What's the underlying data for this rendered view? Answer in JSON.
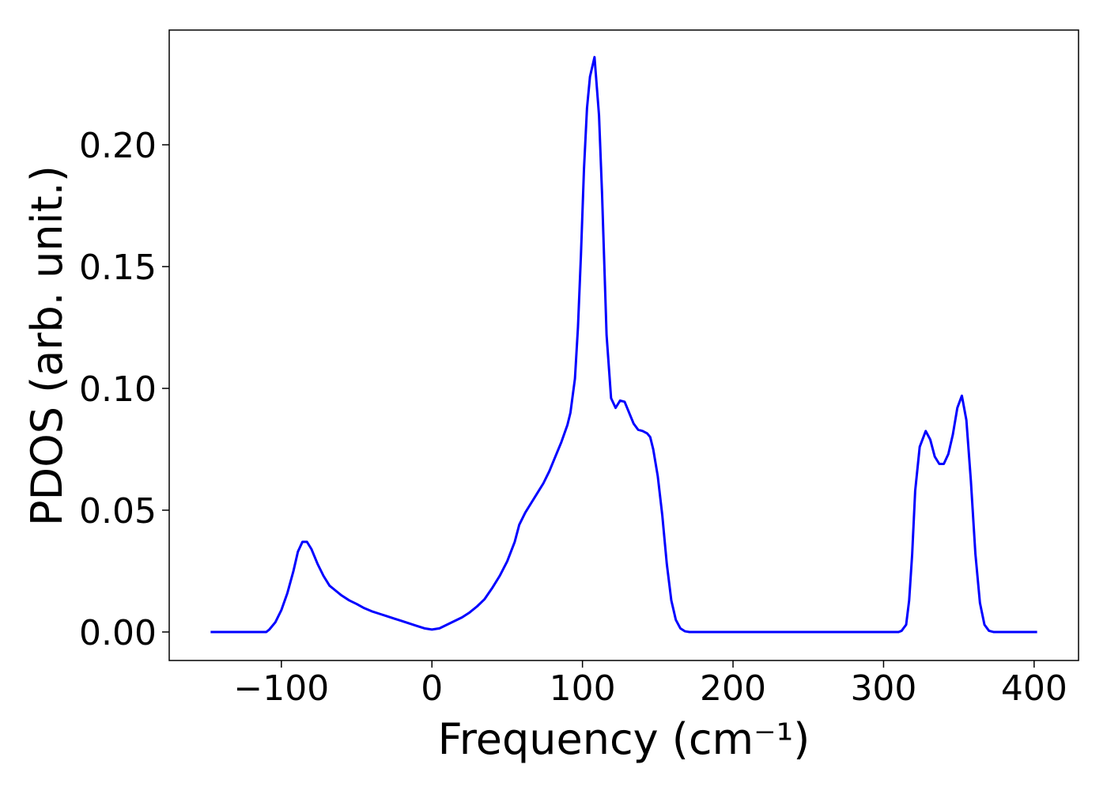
{
  "chart_data": {
    "type": "line",
    "xlabel": "Frequency (cm⁻¹)",
    "ylabel": "PDOS (arb. unit.)",
    "x": [
      -147,
      -130,
      -115,
      -110,
      -108,
      -104,
      -100,
      -96,
      -92,
      -89,
      -86,
      -83,
      -80,
      -76,
      -72,
      -68,
      -64,
      -60,
      -55,
      -50,
      -45,
      -40,
      -35,
      -30,
      -25,
      -20,
      -15,
      -10,
      -5,
      0,
      5,
      10,
      15,
      20,
      25,
      30,
      35,
      40,
      45,
      50,
      55,
      58,
      62,
      66,
      70,
      74,
      78,
      82,
      86,
      90,
      92,
      95,
      97,
      99,
      101,
      103,
      105,
      108,
      111,
      113,
      116,
      119,
      122,
      125,
      128,
      131,
      134,
      137,
      140,
      143,
      145,
      147,
      150,
      153,
      156,
      159,
      162,
      165,
      168,
      171,
      200,
      250,
      300,
      310,
      312,
      315,
      317,
      319,
      321,
      324,
      328,
      331,
      334,
      337,
      340,
      343,
      346,
      349,
      352,
      355,
      358,
      361,
      364,
      367,
      370,
      373,
      390,
      402
    ],
    "series": [
      {
        "name": "PDOS",
        "color": "#0000ff",
        "values": [
          0,
          0,
          0,
          0,
          0.001,
          0.004,
          0.009,
          0.016,
          0.025,
          0.033,
          0.037,
          0.037,
          0.034,
          0.028,
          0.023,
          0.019,
          0.017,
          0.015,
          0.013,
          0.0115,
          0.0098,
          0.0085,
          0.0075,
          0.0065,
          0.0055,
          0.0045,
          0.0035,
          0.0025,
          0.0015,
          0.001,
          0.0015,
          0.003,
          0.0045,
          0.006,
          0.008,
          0.0105,
          0.0135,
          0.018,
          0.023,
          0.029,
          0.037,
          0.044,
          0.049,
          0.053,
          0.057,
          0.061,
          0.066,
          0.072,
          0.078,
          0.085,
          0.09,
          0.104,
          0.125,
          0.155,
          0.19,
          0.215,
          0.228,
          0.236,
          0.212,
          0.18,
          0.122,
          0.096,
          0.092,
          0.095,
          0.0945,
          0.09,
          0.0855,
          0.083,
          0.0825,
          0.0815,
          0.08,
          0.075,
          0.064,
          0.048,
          0.028,
          0.013,
          0.005,
          0.0015,
          0.0003,
          0,
          0,
          0,
          0,
          0,
          0.0005,
          0.003,
          0.013,
          0.032,
          0.058,
          0.076,
          0.0825,
          0.079,
          0.072,
          0.069,
          0.069,
          0.073,
          0.081,
          0.092,
          0.097,
          0.087,
          0.062,
          0.032,
          0.012,
          0.003,
          0.0005,
          0,
          0,
          0
        ]
      }
    ],
    "xlim": [
      -174.5,
      429.5
    ],
    "ylim": [
      -0.0117,
      0.2471
    ],
    "xticks": [
      {
        "value": -100,
        "label": "−100"
      },
      0,
      100,
      200,
      300,
      400
    ],
    "yticks": [
      {
        "value": 0,
        "label": "0.00"
      },
      {
        "value": 0.05,
        "label": "0.05"
      },
      {
        "value": 0.1,
        "label": "0.10"
      },
      {
        "value": 0.15,
        "label": "0.15"
      },
      {
        "value": 0.2,
        "label": "0.20"
      }
    ],
    "grid": false
  }
}
